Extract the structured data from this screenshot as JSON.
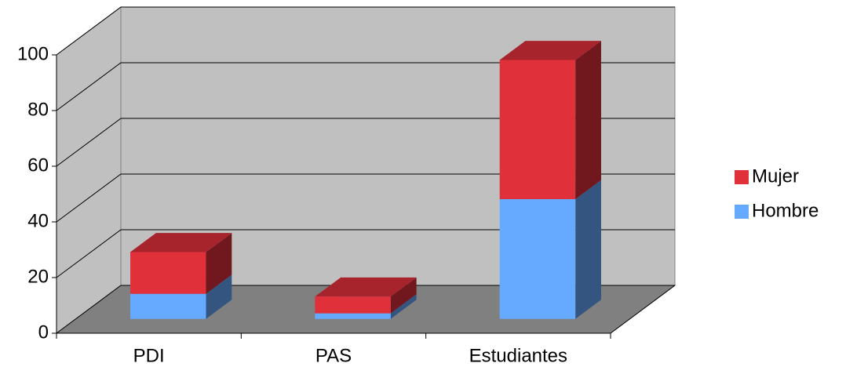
{
  "chart_data": {
    "type": "bar",
    "stacked": true,
    "categories": [
      "PDI",
      "PAS",
      "Estudiantes"
    ],
    "series": [
      {
        "name": "Hombre",
        "color": "#66aaff",
        "values": [
          9,
          2,
          43
        ]
      },
      {
        "name": "Mujer",
        "color": "#e0303a",
        "values": [
          15,
          6,
          50
        ]
      }
    ],
    "ylim": [
      0,
      100
    ],
    "yticks": [
      0,
      20,
      40,
      60,
      80,
      100
    ],
    "grid": true,
    "legend": "right"
  }
}
